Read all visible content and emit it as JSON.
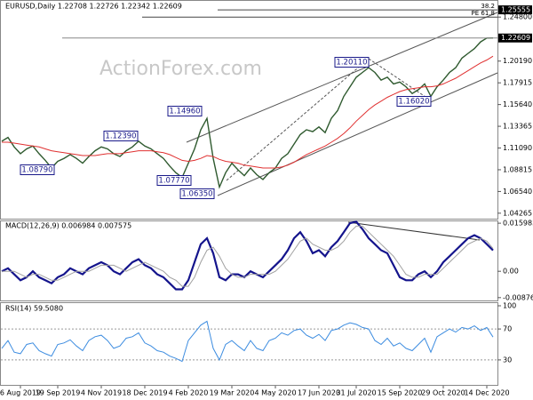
{
  "chart_data": {
    "type": "candlestick",
    "title": "EURUSD,Daily  1.22708 1.22726 1.22342 1.22609",
    "watermark": "ActionForex.com",
    "categories": [
      null,
      null,
      null,
      "6 Aug 2019",
      null,
      null,
      null,
      null,
      null,
      "19 Sep 2019",
      null,
      null,
      null,
      null,
      null,
      null,
      "4 Nov 2019",
      null,
      null,
      null,
      null,
      null,
      null,
      "18 Dec 2019",
      null,
      null,
      null,
      null,
      null,
      null,
      "4 Feb 2020",
      null,
      null,
      null,
      null,
      null,
      null,
      "19 Mar 2020",
      null,
      null,
      null,
      null,
      null,
      null,
      "4 May 2020",
      null,
      null,
      null,
      null,
      null,
      null,
      "17 Jun 2020",
      null,
      null,
      null,
      null,
      null,
      "31 Jul 2020",
      null,
      null,
      null,
      null,
      null,
      null,
      "15 Sep 2020",
      null,
      null,
      null,
      null,
      null,
      null,
      "29 Oct 2020",
      null,
      null,
      null,
      null,
      null,
      null,
      "14 Dec 2020",
      null
    ],
    "ylim": [
      1.036,
      1.264
    ],
    "yticks": [
      {
        "value": 1.248,
        "label": "1.24800"
      },
      {
        "value": 1.2019,
        "label": "1.20190"
      },
      {
        "value": 1.17915,
        "label": "1.17915"
      },
      {
        "value": 1.1564,
        "label": "1.15640"
      },
      {
        "value": 1.13365,
        "label": "1.13365"
      },
      {
        "value": 1.1109,
        "label": "1.11090"
      },
      {
        "value": 1.08815,
        "label": "1.08815"
      },
      {
        "value": 1.0654,
        "label": "1.06540"
      },
      {
        "value": 1.04265,
        "label": "1.04265"
      }
    ],
    "price_tags": [
      {
        "value": 1.25555,
        "label": "1.25555"
      },
      {
        "value": 1.22609,
        "label": "1.22609"
      }
    ],
    "levels": [
      {
        "value": 1.25555,
        "label": "38.2"
      },
      {
        "value": 1.248,
        "label": "PE 61.8"
      }
    ],
    "annotations": [
      "1.08790",
      "1.12390",
      "1.14960",
      "1.07770",
      "1.06350",
      "1.20110",
      "1.16020"
    ],
    "series": [
      {
        "name": "EURUSD",
        "color": "#2f5a2f",
        "values": [
          1.118,
          1.122,
          1.112,
          1.105,
          1.11,
          1.113,
          1.105,
          1.098,
          1.09,
          1.097,
          1.1,
          1.104,
          1.1,
          1.095,
          1.102,
          1.108,
          1.112,
          1.11,
          1.105,
          1.102,
          1.108,
          1.112,
          1.118,
          1.113,
          1.11,
          1.105,
          1.1,
          1.092,
          1.085,
          1.08,
          1.095,
          1.11,
          1.13,
          1.142,
          1.1,
          1.07,
          1.085,
          1.095,
          1.088,
          1.082,
          1.09,
          1.083,
          1.078,
          1.085,
          1.09,
          1.1,
          1.105,
          1.115,
          1.125,
          1.13,
          1.128,
          1.133,
          1.127,
          1.142,
          1.15,
          1.165,
          1.175,
          1.185,
          1.19,
          1.195,
          1.19,
          1.182,
          1.185,
          1.178,
          1.18,
          1.175,
          1.168,
          1.172,
          1.178,
          1.165,
          1.175,
          1.182,
          1.19,
          1.195,
          1.205,
          1.21,
          1.215,
          1.222,
          1.226,
          1.22609
        ]
      },
      {
        "name": "MA",
        "color": "#e03030",
        "values": [
          1.117,
          1.117,
          1.116,
          1.115,
          1.114,
          1.113,
          1.112,
          1.11,
          1.108,
          1.107,
          1.106,
          1.105,
          1.104,
          1.103,
          1.103,
          1.103,
          1.104,
          1.105,
          1.105,
          1.105,
          1.106,
          1.107,
          1.108,
          1.108,
          1.108,
          1.107,
          1.106,
          1.104,
          1.101,
          1.098,
          1.097,
          1.098,
          1.1,
          1.103,
          1.102,
          1.099,
          1.097,
          1.096,
          1.095,
          1.093,
          1.092,
          1.091,
          1.09,
          1.09,
          1.09,
          1.091,
          1.093,
          1.096,
          1.1,
          1.104,
          1.107,
          1.11,
          1.113,
          1.117,
          1.121,
          1.126,
          1.132,
          1.139,
          1.145,
          1.151,
          1.156,
          1.16,
          1.164,
          1.167,
          1.17,
          1.172,
          1.173,
          1.174,
          1.175,
          1.175,
          1.176,
          1.178,
          1.181,
          1.184,
          1.188,
          1.192,
          1.196,
          1.2,
          1.203,
          1.207
        ]
      }
    ],
    "macd": {
      "label": "MACD(12,26,9) 0.006984 0.007575",
      "ylim": [
        -0.0097,
        0.0169
      ],
      "yticks": [
        0.015983,
        {
          "value": 0,
          "label": "0.00"
        },
        -0.008762
      ],
      "series": [
        {
          "name": "MACD",
          "color": "#14148c",
          "values": [
            0,
            0.001,
            -0.001,
            -0.003,
            -0.002,
            0,
            -0.002,
            -0.003,
            -0.004,
            -0.002,
            -0.001,
            0.001,
            0,
            -0.001,
            0.001,
            0.002,
            0.003,
            0.002,
            0,
            -0.001,
            0.001,
            0.003,
            0.004,
            0.002,
            0.001,
            -0.001,
            -0.002,
            -0.004,
            -0.006,
            -0.006,
            -0.003,
            0.003,
            0.009,
            0.011,
            0.006,
            -0.002,
            -0.003,
            -0.001,
            -0.001,
            -0.002,
            0,
            -0.001,
            -0.002,
            0,
            0.002,
            0.004,
            0.007,
            0.011,
            0.013,
            0.01,
            0.006,
            0.007,
            0.005,
            0.008,
            0.01,
            0.013,
            0.016,
            0.0165,
            0.014,
            0.011,
            0.009,
            0.007,
            0.006,
            0.002,
            -0.002,
            -0.003,
            -0.003,
            -0.001,
            0,
            -0.002,
            0,
            0.003,
            0.005,
            0.007,
            0.009,
            0.011,
            0.012,
            0.011,
            0.009,
            0.006984
          ]
        },
        {
          "name": "Signal",
          "color": "#a0a0a0",
          "values": [
            0,
            0,
            0,
            -0.001,
            -0.002,
            -0.001,
            -0.001,
            -0.002,
            -0.003,
            -0.003,
            -0.002,
            -0.001,
            0,
            0,
            0,
            0.001,
            0.002,
            0.002,
            0.002,
            0.001,
            0,
            0.001,
            0.002,
            0.003,
            0.002,
            0.001,
            0,
            -0.002,
            -0.003,
            -0.005,
            -0.005,
            -0.002,
            0.003,
            0.007,
            0.008,
            0.005,
            0.001,
            -0.001,
            -0.002,
            -0.002,
            -0.001,
            -0.001,
            -0.001,
            -0.001,
            0,
            0.002,
            0.004,
            0.007,
            0.01,
            0.011,
            0.009,
            0.008,
            0.007,
            0.007,
            0.008,
            0.01,
            0.013,
            0.015,
            0.015,
            0.013,
            0.011,
            0.009,
            0.007,
            0.005,
            0.002,
            -0.001,
            -0.002,
            -0.002,
            -0.001,
            -0.001,
            -0.001,
            0.001,
            0.003,
            0.005,
            0.007,
            0.009,
            0.01,
            0.011,
            0.01,
            0.007575
          ]
        }
      ]
    },
    "rsi": {
      "label": "RSI(14) 59.5080",
      "ylim": [
        0,
        100
      ],
      "yticks": [
        100,
        70,
        30
      ],
      "levels": [
        70,
        30
      ],
      "series": [
        {
          "name": "RSI",
          "color": "#3c8ce0",
          "values": [
            45,
            55,
            40,
            38,
            50,
            52,
            42,
            38,
            35,
            50,
            52,
            56,
            48,
            42,
            55,
            60,
            62,
            55,
            45,
            48,
            58,
            60,
            65,
            52,
            48,
            42,
            40,
            35,
            32,
            28,
            55,
            65,
            75,
            80,
            45,
            30,
            50,
            55,
            48,
            42,
            55,
            45,
            42,
            55,
            58,
            65,
            62,
            68,
            70,
            62,
            58,
            63,
            55,
            68,
            70,
            75,
            78,
            76,
            72,
            70,
            55,
            50,
            58,
            48,
            52,
            45,
            42,
            50,
            58,
            40,
            60,
            65,
            70,
            66,
            72,
            70,
            74,
            68,
            72,
            59.508
          ]
        }
      ]
    }
  }
}
